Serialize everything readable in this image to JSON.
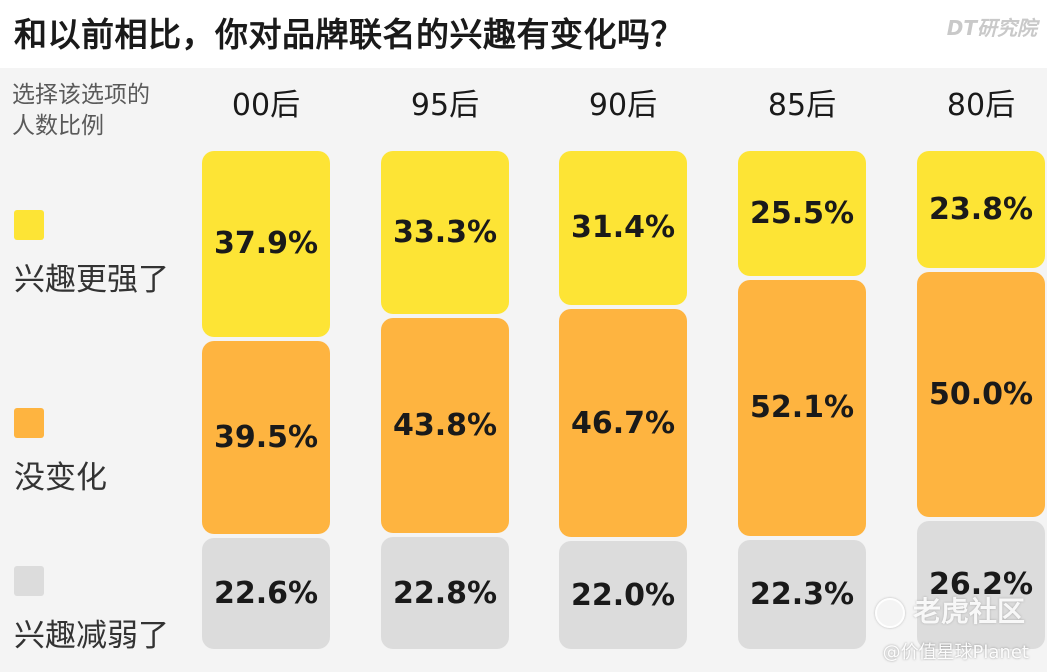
{
  "title": "和以前相比，你对品牌联名的兴趣有变化吗？",
  "brand": "DT研究院",
  "watermark": {
    "line1": "老虎社区",
    "line2": "@价值星球Planet"
  },
  "chart_data": {
    "type": "bar",
    "stacked": true,
    "ylabel": "选择该选项的人数比例",
    "categories": [
      "00后",
      "95后",
      "90后",
      "85后",
      "80后"
    ],
    "series": [
      {
        "name": "兴趣更强了",
        "color": "#fde435",
        "values": [
          37.9,
          33.3,
          31.4,
          25.5,
          23.8
        ]
      },
      {
        "name": "没变化",
        "color": "#feb440",
        "values": [
          39.5,
          43.8,
          46.7,
          52.1,
          50.0
        ]
      },
      {
        "name": "兴趣减弱了",
        "color": "#dcdcdc",
        "values": [
          22.6,
          22.8,
          22.0,
          22.3,
          26.2
        ]
      }
    ],
    "ylim": [
      0,
      100
    ],
    "value_suffix": "%"
  }
}
